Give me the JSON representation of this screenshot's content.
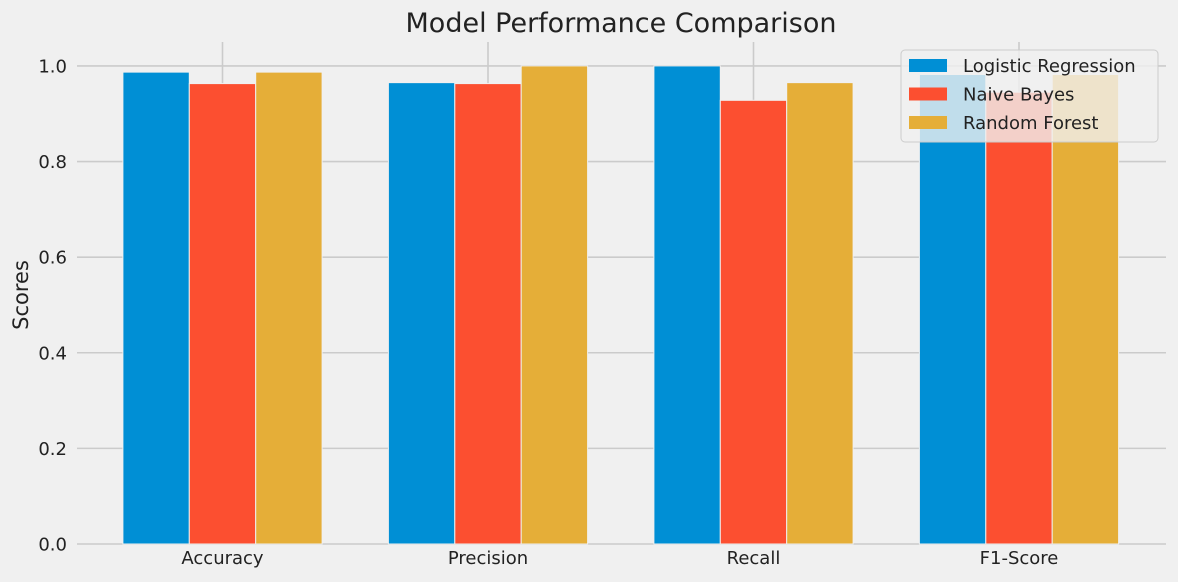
{
  "chart_data": {
    "type": "bar",
    "title": "Model Performance Comparison",
    "xlabel": "",
    "ylabel": "Scores",
    "categories": [
      "Accuracy",
      "Precision",
      "Recall",
      "F1-Score"
    ],
    "series": [
      {
        "name": "Logistic Regression",
        "color": "#008fd5",
        "values": [
          0.987,
          0.965,
          1.0,
          0.982
        ]
      },
      {
        "name": "Naive Bayes",
        "color": "#fc4f30",
        "values": [
          0.963,
          0.963,
          0.928,
          0.945
        ]
      },
      {
        "name": "Random Forest",
        "color": "#e5ae38",
        "values": [
          0.987,
          1.0,
          0.965,
          0.982
        ]
      }
    ],
    "ylim": [
      0,
      1.05
    ],
    "yticks": [
      "0.0",
      "0.2",
      "0.4",
      "0.6",
      "0.8",
      "1.0"
    ],
    "grid": true,
    "legend_position": "top-right"
  }
}
